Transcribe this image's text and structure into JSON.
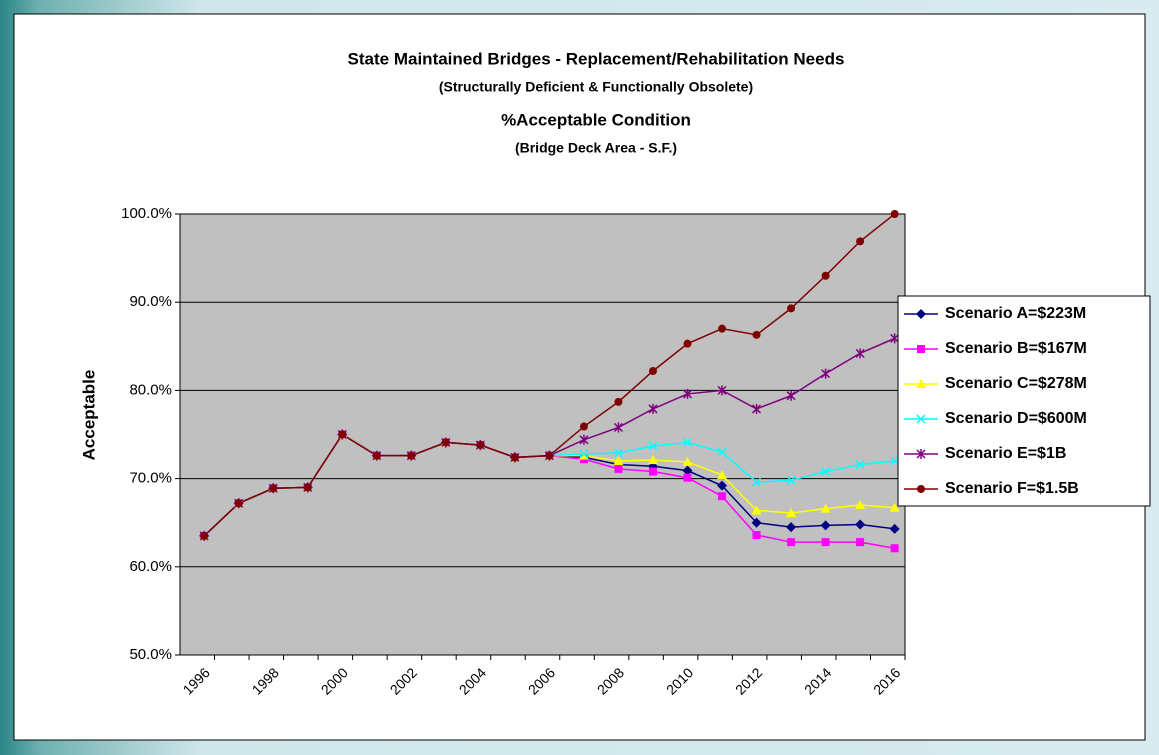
{
  "chart_data": {
    "type": "line",
    "title": "State Maintained Bridges - Replacement/Rehabilitation Needs",
    "subtitle": "(Structurally Deficient & Functionally Obsolete)",
    "subtitle2": "%Acceptable Condition",
    "subtitle3": "(Bridge Deck Area - S.F.)",
    "y_label": "Acceptable",
    "categories": [
      "1996",
      null,
      "1998",
      null,
      "2000",
      null,
      "2002",
      null,
      "2004",
      null,
      "2006",
      null,
      "2008",
      null,
      "2010",
      null,
      "2012",
      null,
      "2014",
      null,
      "2016"
    ],
    "ylim": [
      50,
      100
    ],
    "yticks": [
      {
        "value": 50,
        "label": "50.0%"
      },
      {
        "value": 60,
        "label": "60.0%"
      },
      {
        "value": 70,
        "label": "70.0%"
      },
      {
        "value": 80,
        "label": "80.0%"
      },
      {
        "value": 90,
        "label": "90.0%"
      },
      {
        "value": 100,
        "label": "100.0%"
      }
    ],
    "grid": true,
    "legend": "right",
    "series": [
      {
        "name": "Scenario A=$223M",
        "color": "#000080",
        "marker": "diamond",
        "values": [
          63.5,
          67.2,
          68.9,
          69.0,
          75.0,
          72.6,
          72.6,
          74.1,
          73.8,
          72.4,
          72.6,
          72.4,
          71.6,
          71.4,
          70.9,
          69.2,
          65.0,
          64.5,
          64.7,
          64.8,
          64.3
        ]
      },
      {
        "name": "Scenario B=$167M",
        "color": "#ff00ff",
        "marker": "square",
        "values": [
          63.5,
          67.2,
          68.9,
          69.0,
          75.0,
          72.6,
          72.6,
          74.1,
          73.8,
          72.4,
          72.6,
          72.2,
          71.1,
          70.8,
          70.1,
          68.0,
          63.6,
          62.8,
          62.8,
          62.8,
          62.1
        ]
      },
      {
        "name": "Scenario C=$278M",
        "color": "#ffff00",
        "marker": "triangle",
        "values": [
          63.5,
          67.2,
          68.9,
          69.0,
          75.0,
          72.6,
          72.6,
          74.1,
          73.8,
          72.4,
          72.6,
          72.6,
          72.0,
          72.1,
          71.9,
          70.4,
          66.4,
          66.1,
          66.6,
          67.0,
          66.7
        ]
      },
      {
        "name": "Scenario D=$600M",
        "color": "#00ffff",
        "marker": "x",
        "values": [
          63.5,
          67.2,
          68.9,
          69.0,
          75.0,
          72.6,
          72.6,
          74.1,
          73.8,
          72.4,
          72.6,
          72.8,
          72.9,
          73.7,
          74.1,
          73.0,
          69.6,
          69.8,
          70.8,
          71.6,
          72.0
        ]
      },
      {
        "name": "Scenario E=$1B",
        "color": "#800080",
        "marker": "star",
        "values": [
          63.5,
          67.2,
          68.9,
          69.0,
          75.0,
          72.6,
          72.6,
          74.1,
          73.8,
          72.4,
          72.6,
          74.4,
          75.8,
          77.9,
          79.6,
          80.0,
          77.9,
          79.4,
          81.9,
          84.2,
          85.9
        ]
      },
      {
        "name": "Scenario F=$1.5B",
        "color": "#800000",
        "marker": "circle",
        "values": [
          63.5,
          67.2,
          68.9,
          69.0,
          75.0,
          72.6,
          72.6,
          74.1,
          73.8,
          72.4,
          72.6,
          75.9,
          78.7,
          82.2,
          85.3,
          87.0,
          86.3,
          89.3,
          93.0,
          96.9,
          100.0
        ]
      }
    ]
  }
}
